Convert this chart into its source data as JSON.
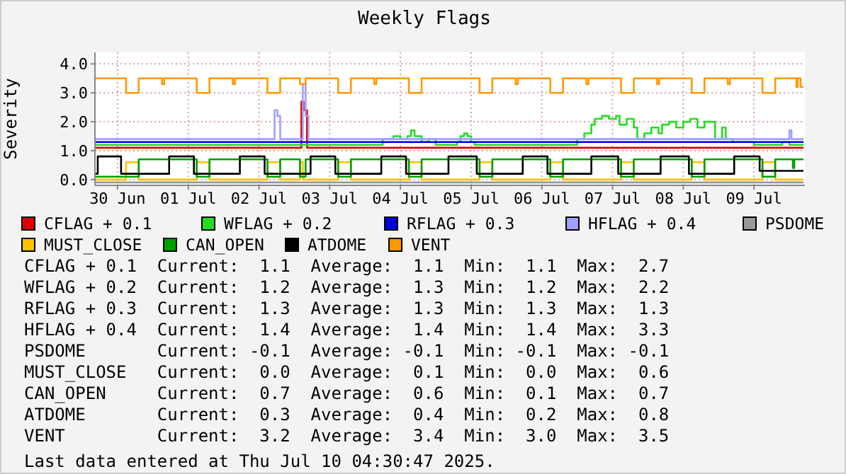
{
  "chart_data": {
    "type": "step",
    "title": "Weekly Flags",
    "ylabel": "Severity",
    "xlim": [
      "2025-06-29T16:20",
      "2025-07-09T17:17"
    ],
    "xticks": [
      {
        "value": "2025-06-30",
        "label": "30 Jun"
      },
      {
        "value": "2025-07-01",
        "label": "01 Jul"
      },
      {
        "value": "2025-07-02",
        "label": "02 Jul"
      },
      {
        "value": "2025-07-03",
        "label": "03 Jul"
      },
      {
        "value": "2025-07-04",
        "label": "04 Jul"
      },
      {
        "value": "2025-07-05",
        "label": "05 Jul"
      },
      {
        "value": "2025-07-06",
        "label": "06 Jul"
      },
      {
        "value": "2025-07-07",
        "label": "07 Jul"
      },
      {
        "value": "2025-07-08",
        "label": "08 Jul"
      },
      {
        "value": "2025-07-09",
        "label": "09 Jul"
      }
    ],
    "ylim": [
      -0.2,
      4.4
    ],
    "yticks": [
      {
        "value": 0,
        "label": "0.0"
      },
      {
        "value": 1,
        "label": "1.0"
      },
      {
        "value": 2,
        "label": "2.0"
      },
      {
        "value": 3,
        "label": "3.0"
      },
      {
        "value": 4,
        "label": "4.0"
      }
    ],
    "grid": true,
    "legend": "bottom",
    "series": [
      {
        "name": "CFLAG + 0.1",
        "color": "#e00000",
        "x": [
          "2025-06-29T16:20",
          "2025-07-02T14:24",
          "2025-07-02T15:07",
          "2025-07-02T16:19",
          "2025-07-09T16:48"
        ],
        "values": [
          1.1,
          2.7,
          2.4,
          1.1,
          1.1
        ]
      },
      {
        "name": "WFLAG + 0.2",
        "color": "#22dd22",
        "x": [
          "2025-06-29T16:20",
          "2025-07-03T16:48",
          "2025-07-03T18:00",
          "2025-07-03T21:36",
          "2025-07-04T00:00",
          "2025-07-04T02:24",
          "2025-07-04T03:36",
          "2025-07-04T04:48",
          "2025-07-04T07:12",
          "2025-07-04T09:36",
          "2025-07-04T12:00",
          "2025-07-04T19:12",
          "2025-07-04T20:24",
          "2025-07-04T21:36",
          "2025-07-04T22:48",
          "2025-07-05T00:00",
          "2025-07-05T01:12",
          "2025-07-06T09:36",
          "2025-07-06T12:00",
          "2025-07-06T14:24",
          "2025-07-06T16:48",
          "2025-07-06T18:00",
          "2025-07-06T20:24",
          "2025-07-06T22:48",
          "2025-07-07T01:12",
          "2025-07-07T02:24",
          "2025-07-07T04:48",
          "2025-07-07T07:12",
          "2025-07-07T08:24",
          "2025-07-07T10:48",
          "2025-07-07T13:12",
          "2025-07-07T15:36",
          "2025-07-07T16:48",
          "2025-07-07T19:12",
          "2025-07-07T21:36",
          "2025-07-08T00:00",
          "2025-07-08T02:24",
          "2025-07-08T04:48",
          "2025-07-08T07:12",
          "2025-07-08T09:36",
          "2025-07-08T10:48",
          "2025-07-08T13:12",
          "2025-07-08T14:24",
          "2025-07-08T16:48",
          "2025-07-09T00:00",
          "2025-07-09T09:36",
          "2025-07-09T12:00",
          "2025-07-09T16:48"
        ],
        "values": [
          1.2,
          1.2,
          1.4,
          1.5,
          1.4,
          1.5,
          1.7,
          1.5,
          1.3,
          1.4,
          1.2,
          1.3,
          1.5,
          1.6,
          1.5,
          1.3,
          1.2,
          1.2,
          1.4,
          1.6,
          1.9,
          2.1,
          2.2,
          2.1,
          2.2,
          1.9,
          2.1,
          1.8,
          1.4,
          1.6,
          1.8,
          1.6,
          1.9,
          2.0,
          1.8,
          2.0,
          2.1,
          1.8,
          2.0,
          2.0,
          1.4,
          1.8,
          1.4,
          1.3,
          1.2,
          1.3,
          1.2,
          1.2
        ]
      },
      {
        "name": "RFLAG + 0.3",
        "color": "#0000e0",
        "x": [
          "2025-06-29T16:20",
          "2025-07-09T16:48"
        ],
        "values": [
          1.3,
          1.3
        ]
      },
      {
        "name": "HFLAG + 0.4",
        "color": "#a0a0ff",
        "x": [
          "2025-06-29T16:20",
          "2025-07-02T05:17",
          "2025-07-02T06:14",
          "2025-07-02T07:12",
          "2025-07-02T14:53",
          "2025-07-02T15:50",
          "2025-07-02T16:48",
          "2025-07-09T12:00",
          "2025-07-09T12:43",
          "2025-07-09T16:48"
        ],
        "values": [
          1.4,
          2.4,
          2.2,
          1.4,
          3.3,
          2.2,
          1.4,
          1.7,
          1.4,
          1.4
        ]
      },
      {
        "name": "PSDOME",
        "color": "#999999",
        "x": [
          "2025-06-29T16:20",
          "2025-07-09T16:48"
        ],
        "values": [
          -0.1,
          -0.1
        ]
      },
      {
        "name": "MUST_CLOSE",
        "color": "#ffc000",
        "x": [
          "2025-06-29T16:20",
          "2025-06-30T02:53",
          "2025-06-30T07:12",
          "2025-07-01T02:53",
          "2025-07-01T07:12",
          "2025-07-02T02:53",
          "2025-07-02T07:12",
          "2025-07-02T13:55",
          "2025-07-02T14:53",
          "2025-07-03T02:53",
          "2025-07-03T07:12",
          "2025-07-04T02:53",
          "2025-07-04T07:12",
          "2025-07-05T02:53",
          "2025-07-05T07:12",
          "2025-07-06T02:53",
          "2025-07-06T07:12",
          "2025-07-07T02:53",
          "2025-07-07T07:12",
          "2025-07-08T02:53",
          "2025-07-08T07:12",
          "2025-07-09T02:53",
          "2025-07-09T07:12",
          "2025-07-09T16:48"
        ],
        "values": [
          0,
          0.6,
          0,
          0.6,
          0,
          0.6,
          0,
          0.6,
          0,
          0.6,
          0,
          0.6,
          0,
          0.6,
          0,
          0.6,
          0,
          0.6,
          0,
          0.6,
          0,
          0.6,
          0,
          0
        ]
      },
      {
        "name": "CAN_OPEN",
        "color": "#00a000",
        "x": [
          "2025-06-29T16:20",
          "2025-06-30T07:12",
          "2025-07-01T02:53",
          "2025-07-01T07:12",
          "2025-07-02T02:53",
          "2025-07-02T07:12",
          "2025-07-02T13:55",
          "2025-07-02T15:50",
          "2025-07-03T02:53",
          "2025-07-03T07:12",
          "2025-07-04T02:53",
          "2025-07-04T07:12",
          "2025-07-05T02:53",
          "2025-07-05T07:12",
          "2025-07-06T02:53",
          "2025-07-06T07:12",
          "2025-07-07T02:53",
          "2025-07-07T07:12",
          "2025-07-08T02:53",
          "2025-07-08T07:12",
          "2025-07-09T02:53",
          "2025-07-09T07:12",
          "2025-07-09T13:12",
          "2025-07-09T13:41",
          "2025-07-09T16:48"
        ],
        "values": [
          0.1,
          0.7,
          0.1,
          0.7,
          0.1,
          0.7,
          0.1,
          0.7,
          0.1,
          0.7,
          0.1,
          0.7,
          0.1,
          0.7,
          0.1,
          0.7,
          0.1,
          0.7,
          0.1,
          0.7,
          0.1,
          0.7,
          0.4,
          0.7,
          0.7
        ]
      },
      {
        "name": "ATDOME",
        "color": "#000000",
        "x": [
          "2025-06-29T16:20",
          "2025-06-29T17:17",
          "2025-06-30T01:12",
          "2025-06-30T17:31",
          "2025-07-01T01:55",
          "2025-07-01T17:31",
          "2025-07-02T01:55",
          "2025-07-02T17:31",
          "2025-07-03T01:55",
          "2025-07-03T17:31",
          "2025-07-04T01:55",
          "2025-07-04T16:19",
          "2025-07-05T01:55",
          "2025-07-05T17:31",
          "2025-07-06T01:55",
          "2025-07-06T16:48",
          "2025-07-07T01:55",
          "2025-07-07T16:19",
          "2025-07-08T01:55",
          "2025-07-08T17:17",
          "2025-07-09T01:55",
          "2025-07-09T16:48"
        ],
        "values": [
          0.2,
          0.8,
          0.2,
          0.8,
          0.2,
          0.8,
          0.2,
          0.8,
          0.2,
          0.8,
          0.2,
          0.8,
          0.2,
          0.8,
          0.2,
          0.8,
          0.2,
          0.8,
          0.2,
          0.8,
          0.3,
          0.3
        ]
      },
      {
        "name": "VENT",
        "color": "#ff9900",
        "x": [
          "2025-06-29T16:20",
          "2025-06-30T02:53",
          "2025-06-30T07:12",
          "2025-06-30T15:07",
          "2025-06-30T15:50",
          "2025-07-01T02:53",
          "2025-07-01T07:12",
          "2025-07-01T15:07",
          "2025-07-01T15:50",
          "2025-07-02T02:53",
          "2025-07-02T07:12",
          "2025-07-02T13:55",
          "2025-07-02T15:50",
          "2025-07-03T02:53",
          "2025-07-03T07:12",
          "2025-07-03T15:07",
          "2025-07-03T15:50",
          "2025-07-04T02:53",
          "2025-07-04T07:12",
          "2025-07-05T02:53",
          "2025-07-05T07:12",
          "2025-07-05T15:07",
          "2025-07-05T15:50",
          "2025-07-06T02:53",
          "2025-07-06T07:12",
          "2025-07-06T15:07",
          "2025-07-06T15:50",
          "2025-07-07T02:53",
          "2025-07-07T07:12",
          "2025-07-07T15:07",
          "2025-07-07T15:50",
          "2025-07-08T02:53",
          "2025-07-08T07:12",
          "2025-07-08T15:07",
          "2025-07-08T15:50",
          "2025-07-09T02:53",
          "2025-07-09T07:12",
          "2025-07-09T14:24",
          "2025-07-09T14:53",
          "2025-07-09T15:50",
          "2025-07-09T16:48"
        ],
        "values": [
          3.5,
          3.0,
          3.5,
          3.3,
          3.5,
          3.0,
          3.5,
          3.3,
          3.5,
          3.0,
          3.5,
          3.3,
          3.5,
          3.0,
          3.5,
          3.3,
          3.5,
          3.0,
          3.5,
          3.0,
          3.5,
          3.3,
          3.5,
          3.0,
          3.5,
          3.3,
          3.5,
          3.0,
          3.5,
          3.3,
          3.5,
          3.0,
          3.5,
          3.3,
          3.5,
          3.0,
          3.5,
          3.2,
          3.5,
          3.2,
          3.2
        ]
      }
    ],
    "annotations": [
      "CFLAG + 0.1  Current:  1.1  Average:  1.1  Min:  1.1  Max:  2.7",
      "WFLAG + 0.2  Current:  1.2  Average:  1.3  Min:  1.2  Max:  2.2",
      "RFLAG + 0.3  Current:  1.3  Average:  1.3  Min:  1.3  Max:  1.3",
      "HFLAG + 0.4  Current:  1.4  Average:  1.4  Min:  1.4  Max:  3.3",
      "PSDOME       Current: -0.1  Average: -0.1  Min: -0.1  Max: -0.1",
      "MUST_CLOSE   Current:  0.0  Average:  0.1  Min:  0.0  Max:  0.6",
      "CAN_OPEN     Current:  0.7  Average:  0.6  Min:  0.1  Max:  0.7",
      "ATDOME       Current:  0.3  Average:  0.4  Min:  0.2  Max:  0.8",
      "VENT         Current:  3.2  Average:  3.4  Min:  3.0  Max:  3.5",
      "Last data entered at Thu Jul 10 04:30:47 2025."
    ]
  }
}
